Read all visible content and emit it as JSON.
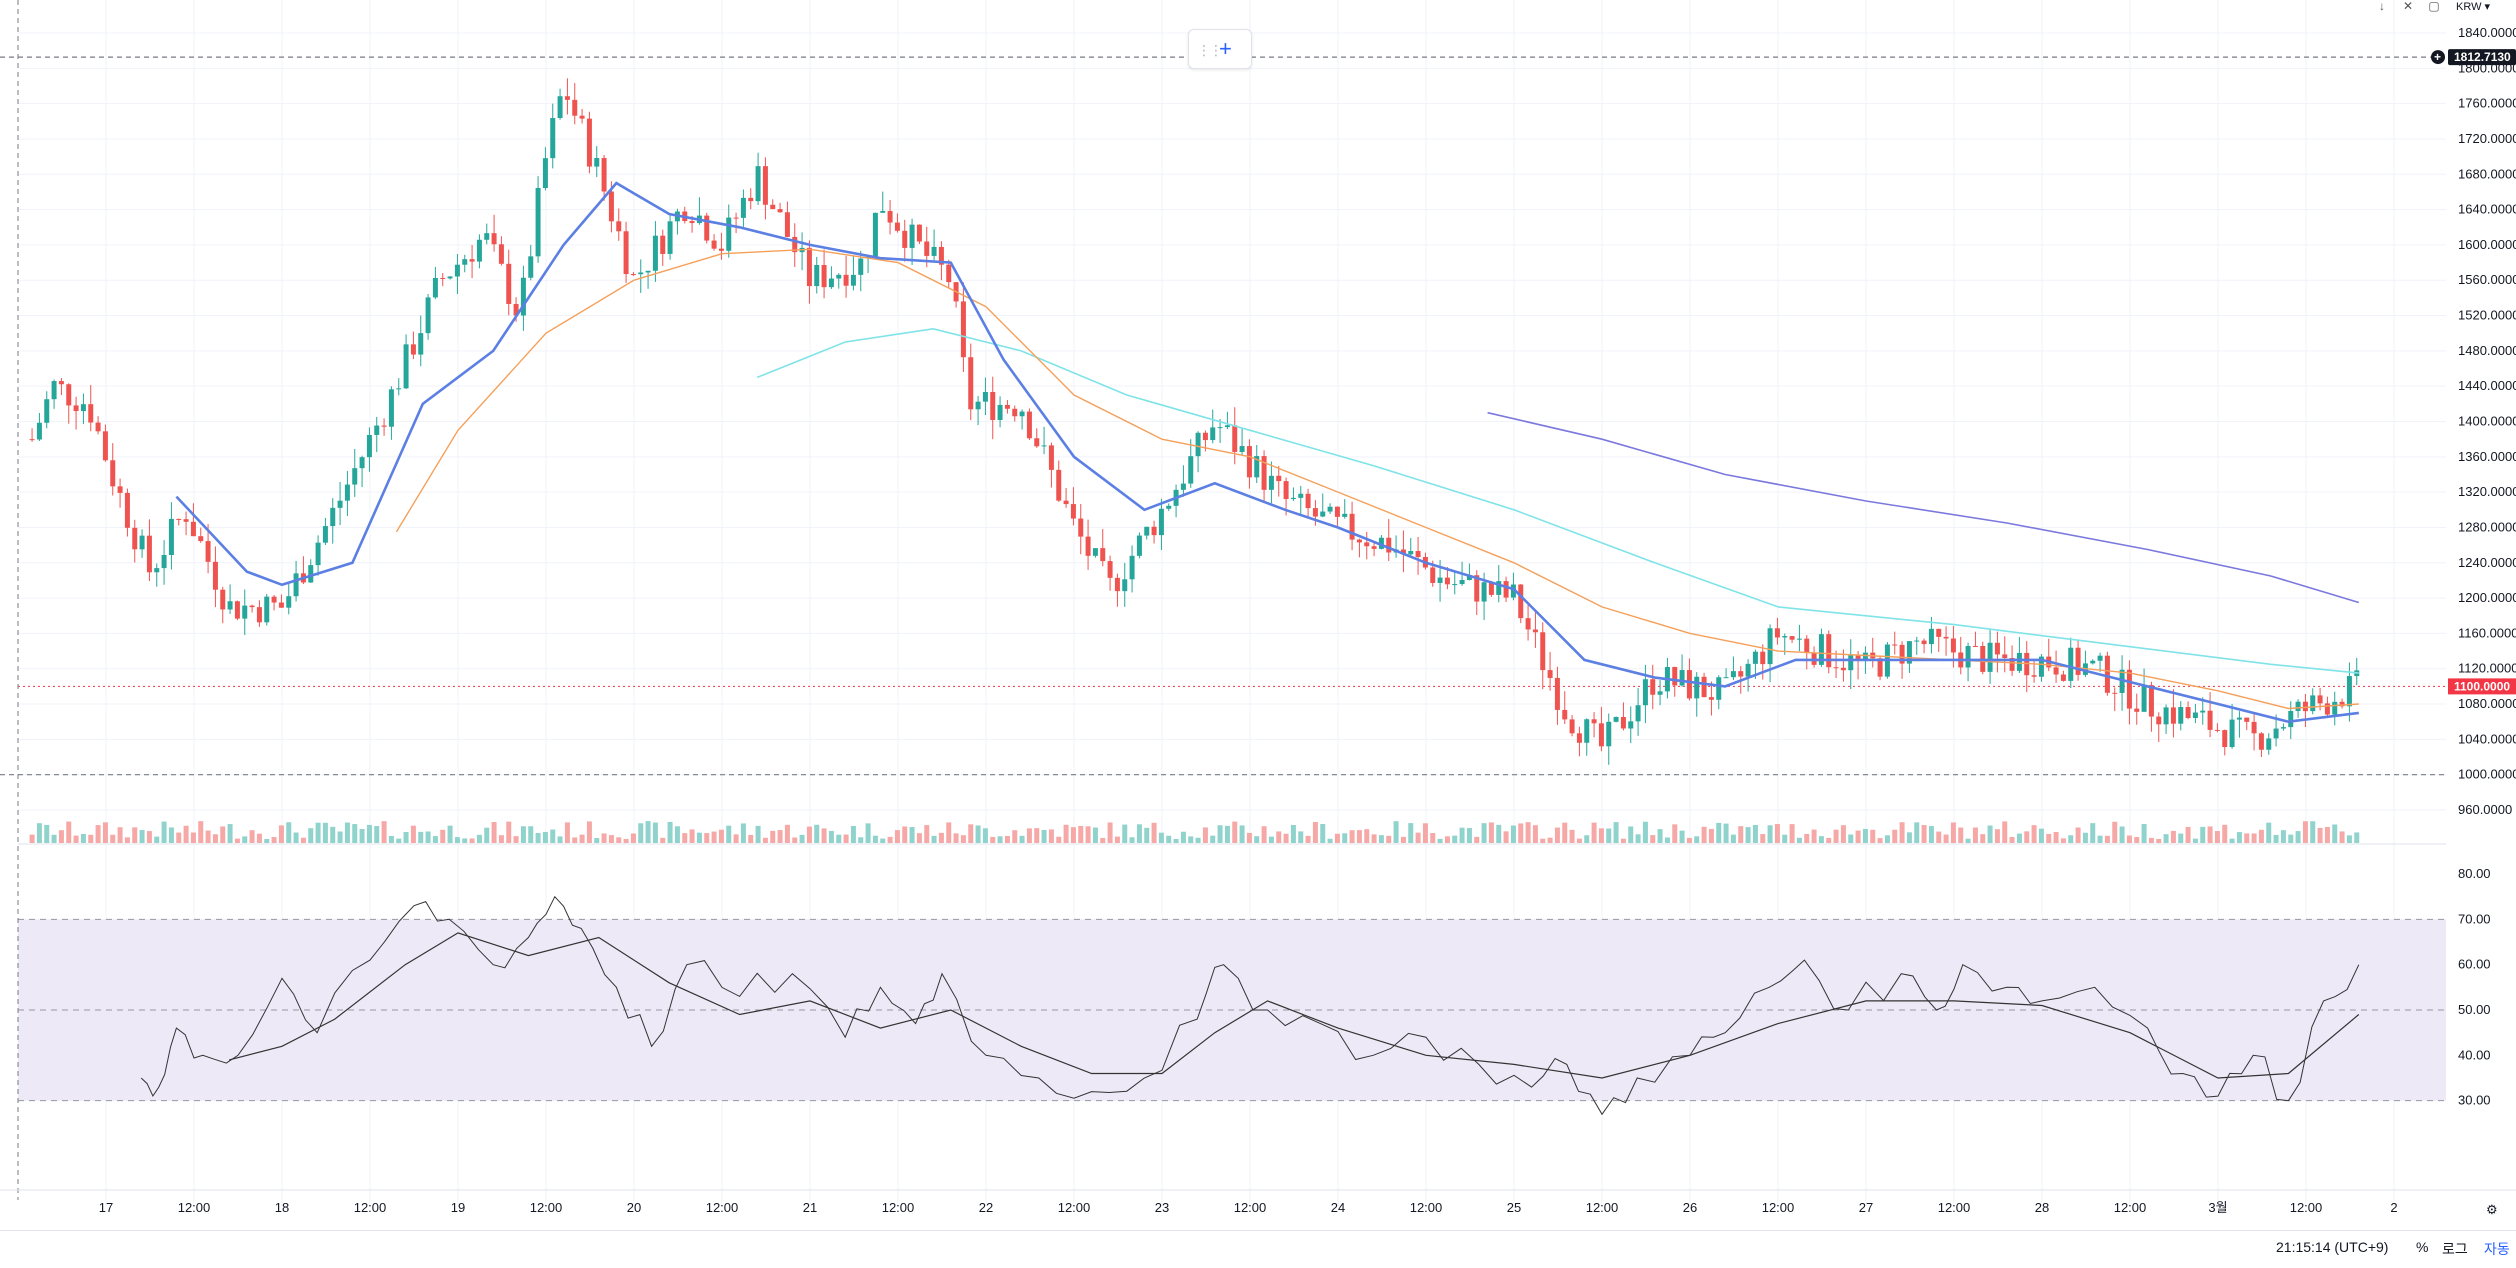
{
  "currency_label": "KRW ▾",
  "price_axis": {
    "labels": [
      "1840.0000",
      "1800.0000",
      "1760.0000",
      "1720.0000",
      "1680.0000",
      "1640.0000",
      "1600.0000",
      "1560.0000",
      "1520.0000",
      "1480.0000",
      "1440.0000",
      "1400.0000",
      "1360.0000",
      "1320.0000",
      "1280.0000",
      "1240.0000",
      "1200.0000",
      "1160.0000",
      "1120.0000",
      "1080.0000",
      "1040.0000",
      "1000.0000",
      "960.0000"
    ],
    "values": [
      1840,
      1800,
      1760,
      1720,
      1680,
      1640,
      1600,
      1560,
      1520,
      1480,
      1440,
      1400,
      1360,
      1320,
      1280,
      1240,
      1200,
      1160,
      1120,
      1080,
      1040,
      1000,
      960
    ]
  },
  "rsi_axis": {
    "labels": [
      "80.00",
      "70.00",
      "60.00",
      "50.00",
      "40.00",
      "30.00"
    ],
    "values": [
      80,
      70,
      60,
      50,
      40,
      30
    ]
  },
  "crosshair_tag": "1812.7130",
  "last_price_tag": "1100.0000",
  "colors": {
    "up": "#26a69a",
    "down": "#ef5350",
    "ma_fast": "#5b7fe3",
    "ma_mid": "#f5a05a",
    "ma_slow": "#7fe3e8",
    "ma_long": "#7b78de",
    "rsi": "#333333",
    "rsi_ma": "#333333",
    "rsi_band": "#ede9f7",
    "last_price": "#f23645"
  },
  "time_axis": [
    {
      "label": "17",
      "pos": 0
    },
    {
      "label": "12:00",
      "pos": 0.5
    },
    {
      "label": "18",
      "pos": 1
    },
    {
      "label": "12:00",
      "pos": 1.5
    },
    {
      "label": "19",
      "pos": 2
    },
    {
      "label": "12:00",
      "pos": 2.5
    },
    {
      "label": "20",
      "pos": 3
    },
    {
      "label": "12:00",
      "pos": 3.5
    },
    {
      "label": "21",
      "pos": 4
    },
    {
      "label": "12:00",
      "pos": 4.5
    },
    {
      "label": "22",
      "pos": 5
    },
    {
      "label": "12:00",
      "pos": 5.5
    },
    {
      "label": "23",
      "pos": 6
    },
    {
      "label": "12:00",
      "pos": 6.5
    },
    {
      "label": "24",
      "pos": 7
    },
    {
      "label": "12:00",
      "pos": 7.5
    },
    {
      "label": "25",
      "pos": 8
    },
    {
      "label": "12:00",
      "pos": 8.5
    },
    {
      "label": "26",
      "pos": 9
    },
    {
      "label": "12:00",
      "pos": 9.5
    },
    {
      "label": "27",
      "pos": 10
    },
    {
      "label": "12:00",
      "pos": 10.5
    },
    {
      "label": "28",
      "pos": 11
    },
    {
      "label": "12:00",
      "pos": 11.5
    },
    {
      "label": "3월",
      "pos": 12
    },
    {
      "label": "12:00",
      "pos": 12.5
    },
    {
      "label": "2",
      "pos": 13
    }
  ],
  "bottom_bar": {
    "clock": "21:15:14 (UTC+9)",
    "percent": "%",
    "log": "로그",
    "auto": "자동"
  },
  "chart_data": {
    "type": "candlestick",
    "price_range": [
      960,
      1840
    ],
    "rsi_range": [
      20,
      80
    ],
    "rsi_levels": [
      70,
      50,
      30
    ],
    "last_price": 1100,
    "crosshair_price": 1812.713,
    "horizontal_levels": [
      1812.713,
      1000
    ],
    "anchors": [
      {
        "pos": -0.42,
        "price": 1380
      },
      {
        "pos": -0.3,
        "price": 1440
      },
      {
        "pos": -0.1,
        "price": 1420
      },
      {
        "pos": 0.05,
        "price": 1330
      },
      {
        "pos": 0.25,
        "price": 1230
      },
      {
        "pos": 0.45,
        "price": 1300
      },
      {
        "pos": 0.7,
        "price": 1190
      },
      {
        "pos": 1.0,
        "price": 1190
      },
      {
        "pos": 1.3,
        "price": 1300
      },
      {
        "pos": 1.6,
        "price": 1420
      },
      {
        "pos": 1.9,
        "price": 1560
      },
      {
        "pos": 2.15,
        "price": 1610
      },
      {
        "pos": 2.35,
        "price": 1520
      },
      {
        "pos": 2.5,
        "price": 1700
      },
      {
        "pos": 2.6,
        "price": 1780
      },
      {
        "pos": 2.8,
        "price": 1680
      },
      {
        "pos": 3.0,
        "price": 1560
      },
      {
        "pos": 3.3,
        "price": 1650
      },
      {
        "pos": 3.5,
        "price": 1600
      },
      {
        "pos": 3.7,
        "price": 1680
      },
      {
        "pos": 4.0,
        "price": 1560
      },
      {
        "pos": 4.3,
        "price": 1580
      },
      {
        "pos": 4.4,
        "price": 1650
      },
      {
        "pos": 4.6,
        "price": 1600
      },
      {
        "pos": 4.8,
        "price": 1560
      },
      {
        "pos": 4.9,
        "price": 1420
      },
      {
        "pos": 5.2,
        "price": 1420
      },
      {
        "pos": 5.5,
        "price": 1280
      },
      {
        "pos": 5.7,
        "price": 1210
      },
      {
        "pos": 6.0,
        "price": 1300
      },
      {
        "pos": 6.3,
        "price": 1400
      },
      {
        "pos": 6.7,
        "price": 1310
      },
      {
        "pos": 7.0,
        "price": 1280
      },
      {
        "pos": 7.3,
        "price": 1260
      },
      {
        "pos": 7.6,
        "price": 1220
      },
      {
        "pos": 8.0,
        "price": 1200
      },
      {
        "pos": 8.3,
        "price": 1070
      },
      {
        "pos": 8.5,
        "price": 1030
      },
      {
        "pos": 8.8,
        "price": 1110
      },
      {
        "pos": 9.2,
        "price": 1090
      },
      {
        "pos": 9.5,
        "price": 1160
      },
      {
        "pos": 10.0,
        "price": 1120
      },
      {
        "pos": 10.3,
        "price": 1150
      },
      {
        "pos": 10.7,
        "price": 1130
      },
      {
        "pos": 11.0,
        "price": 1130
      },
      {
        "pos": 11.3,
        "price": 1120
      },
      {
        "pos": 11.6,
        "price": 1080
      },
      {
        "pos": 11.9,
        "price": 1060
      },
      {
        "pos": 12.2,
        "price": 1040
      },
      {
        "pos": 12.45,
        "price": 1070
      },
      {
        "pos": 12.8,
        "price": 1100
      }
    ],
    "ma_fast": [
      {
        "pos": 0.4,
        "price": 1315
      },
      {
        "pos": 0.8,
        "price": 1230
      },
      {
        "pos": 1.0,
        "price": 1215
      },
      {
        "pos": 1.4,
        "price": 1240
      },
      {
        "pos": 1.8,
        "price": 1420
      },
      {
        "pos": 2.2,
        "price": 1480
      },
      {
        "pos": 2.6,
        "price": 1600
      },
      {
        "pos": 2.9,
        "price": 1670
      },
      {
        "pos": 3.2,
        "price": 1635
      },
      {
        "pos": 3.6,
        "price": 1620
      },
      {
        "pos": 4.0,
        "price": 1600
      },
      {
        "pos": 4.4,
        "price": 1585
      },
      {
        "pos": 4.8,
        "price": 1580
      },
      {
        "pos": 5.1,
        "price": 1470
      },
      {
        "pos": 5.5,
        "price": 1360
      },
      {
        "pos": 5.9,
        "price": 1300
      },
      {
        "pos": 6.3,
        "price": 1330
      },
      {
        "pos": 6.7,
        "price": 1300
      },
      {
        "pos": 7.0,
        "price": 1280
      },
      {
        "pos": 7.5,
        "price": 1240
      },
      {
        "pos": 8.0,
        "price": 1210
      },
      {
        "pos": 8.4,
        "price": 1130
      },
      {
        "pos": 8.8,
        "price": 1110
      },
      {
        "pos": 9.2,
        "price": 1100
      },
      {
        "pos": 9.6,
        "price": 1130
      },
      {
        "pos": 10.0,
        "price": 1130
      },
      {
        "pos": 10.5,
        "price": 1130
      },
      {
        "pos": 11.0,
        "price": 1130
      },
      {
        "pos": 11.5,
        "price": 1105
      },
      {
        "pos": 12.0,
        "price": 1080
      },
      {
        "pos": 12.4,
        "price": 1060
      },
      {
        "pos": 12.8,
        "price": 1070
      }
    ],
    "ma_mid": [
      {
        "pos": 1.65,
        "price": 1275
      },
      {
        "pos": 2.0,
        "price": 1390
      },
      {
        "pos": 2.5,
        "price": 1500
      },
      {
        "pos": 3.0,
        "price": 1560
      },
      {
        "pos": 3.5,
        "price": 1590
      },
      {
        "pos": 4.0,
        "price": 1595
      },
      {
        "pos": 4.5,
        "price": 1580
      },
      {
        "pos": 5.0,
        "price": 1530
      },
      {
        "pos": 5.5,
        "price": 1430
      },
      {
        "pos": 6.0,
        "price": 1380
      },
      {
        "pos": 6.5,
        "price": 1360
      },
      {
        "pos": 7.0,
        "price": 1320
      },
      {
        "pos": 7.5,
        "price": 1280
      },
      {
        "pos": 8.0,
        "price": 1240
      },
      {
        "pos": 8.5,
        "price": 1190
      },
      {
        "pos": 9.0,
        "price": 1160
      },
      {
        "pos": 9.5,
        "price": 1140
      },
      {
        "pos": 10.0,
        "price": 1135
      },
      {
        "pos": 10.5,
        "price": 1130
      },
      {
        "pos": 11.0,
        "price": 1125
      },
      {
        "pos": 11.5,
        "price": 1115
      },
      {
        "pos": 12.0,
        "price": 1095
      },
      {
        "pos": 12.4,
        "price": 1075
      },
      {
        "pos": 12.8,
        "price": 1080
      }
    ],
    "ma_slow": [
      {
        "pos": 3.7,
        "price": 1450
      },
      {
        "pos": 4.2,
        "price": 1490
      },
      {
        "pos": 4.7,
        "price": 1505
      },
      {
        "pos": 5.2,
        "price": 1480
      },
      {
        "pos": 5.8,
        "price": 1430
      },
      {
        "pos": 6.5,
        "price": 1390
      },
      {
        "pos": 7.2,
        "price": 1350
      },
      {
        "pos": 8.0,
        "price": 1300
      },
      {
        "pos": 8.8,
        "price": 1240
      },
      {
        "pos": 9.5,
        "price": 1190
      },
      {
        "pos": 10.5,
        "price": 1170
      },
      {
        "pos": 11.5,
        "price": 1145
      },
      {
        "pos": 12.3,
        "price": 1125
      },
      {
        "pos": 12.8,
        "price": 1115
      }
    ],
    "ma_long": [
      {
        "pos": 7.85,
        "price": 1410
      },
      {
        "pos": 8.5,
        "price": 1380
      },
      {
        "pos": 9.2,
        "price": 1340
      },
      {
        "pos": 10.0,
        "price": 1310
      },
      {
        "pos": 10.8,
        "price": 1285
      },
      {
        "pos": 11.6,
        "price": 1255
      },
      {
        "pos": 12.3,
        "price": 1225
      },
      {
        "pos": 12.8,
        "price": 1195
      }
    ],
    "rsi_anchors": [
      {
        "pos": 0.2,
        "value": 35
      },
      {
        "pos": 0.3,
        "value": 33
      },
      {
        "pos": 0.4,
        "value": 46
      },
      {
        "pos": 0.55,
        "value": 40
      },
      {
        "pos": 0.75,
        "value": 40
      },
      {
        "pos": 1.0,
        "value": 57
      },
      {
        "pos": 1.2,
        "value": 45
      },
      {
        "pos": 1.5,
        "value": 61
      },
      {
        "pos": 1.75,
        "value": 73
      },
      {
        "pos": 1.95,
        "value": 70
      },
      {
        "pos": 2.2,
        "value": 60
      },
      {
        "pos": 2.4,
        "value": 66
      },
      {
        "pos": 2.55,
        "value": 75
      },
      {
        "pos": 2.7,
        "value": 68
      },
      {
        "pos": 2.9,
        "value": 55
      },
      {
        "pos": 3.1,
        "value": 42
      },
      {
        "pos": 3.3,
        "value": 60
      },
      {
        "pos": 3.6,
        "value": 53
      },
      {
        "pos": 3.9,
        "value": 58
      },
      {
        "pos": 4.2,
        "value": 44
      },
      {
        "pos": 4.4,
        "value": 55
      },
      {
        "pos": 4.6,
        "value": 47
      },
      {
        "pos": 4.75,
        "value": 58
      },
      {
        "pos": 5.0,
        "value": 40
      },
      {
        "pos": 5.3,
        "value": 35
      },
      {
        "pos": 5.6,
        "value": 32
      },
      {
        "pos": 5.9,
        "value": 35
      },
      {
        "pos": 6.2,
        "value": 48
      },
      {
        "pos": 6.35,
        "value": 60
      },
      {
        "pos": 6.6,
        "value": 50
      },
      {
        "pos": 6.9,
        "value": 47
      },
      {
        "pos": 7.2,
        "value": 40
      },
      {
        "pos": 7.5,
        "value": 44
      },
      {
        "pos": 7.8,
        "value": 38
      },
      {
        "pos": 8.1,
        "value": 33
      },
      {
        "pos": 8.3,
        "value": 38
      },
      {
        "pos": 8.5,
        "value": 27
      },
      {
        "pos": 8.7,
        "value": 35
      },
      {
        "pos": 9.0,
        "value": 40
      },
      {
        "pos": 9.2,
        "value": 45
      },
      {
        "pos": 9.45,
        "value": 55
      },
      {
        "pos": 9.65,
        "value": 61
      },
      {
        "pos": 9.9,
        "value": 50
      },
      {
        "pos": 10.2,
        "value": 58
      },
      {
        "pos": 10.4,
        "value": 50
      },
      {
        "pos": 10.55,
        "value": 60
      },
      {
        "pos": 10.8,
        "value": 55
      },
      {
        "pos": 11.0,
        "value": 52
      },
      {
        "pos": 11.3,
        "value": 55
      },
      {
        "pos": 11.6,
        "value": 46
      },
      {
        "pos": 11.8,
        "value": 36
      },
      {
        "pos": 12.0,
        "value": 31
      },
      {
        "pos": 12.2,
        "value": 40
      },
      {
        "pos": 12.4,
        "value": 30
      },
      {
        "pos": 12.6,
        "value": 52
      },
      {
        "pos": 12.8,
        "value": 60
      }
    ],
    "rsi_ma": [
      {
        "pos": 0.7,
        "value": 39
      },
      {
        "pos": 1.0,
        "value": 42
      },
      {
        "pos": 1.3,
        "value": 48
      },
      {
        "pos": 1.7,
        "value": 60
      },
      {
        "pos": 2.0,
        "value": 67
      },
      {
        "pos": 2.4,
        "value": 62
      },
      {
        "pos": 2.8,
        "value": 66
      },
      {
        "pos": 3.2,
        "value": 56
      },
      {
        "pos": 3.6,
        "value": 49
      },
      {
        "pos": 4.0,
        "value": 52
      },
      {
        "pos": 4.4,
        "value": 46
      },
      {
        "pos": 4.8,
        "value": 50
      },
      {
        "pos": 5.2,
        "value": 42
      },
      {
        "pos": 5.6,
        "value": 36
      },
      {
        "pos": 6.0,
        "value": 36
      },
      {
        "pos": 6.3,
        "value": 45
      },
      {
        "pos": 6.6,
        "value": 52
      },
      {
        "pos": 7.0,
        "value": 46
      },
      {
        "pos": 7.5,
        "value": 40
      },
      {
        "pos": 8.0,
        "value": 38
      },
      {
        "pos": 8.5,
        "value": 35
      },
      {
        "pos": 9.0,
        "value": 40
      },
      {
        "pos": 9.5,
        "value": 47
      },
      {
        "pos": 10.0,
        "value": 52
      },
      {
        "pos": 10.5,
        "value": 52
      },
      {
        "pos": 11.0,
        "value": 51
      },
      {
        "pos": 11.5,
        "value": 45
      },
      {
        "pos": 12.0,
        "value": 35
      },
      {
        "pos": 12.4,
        "value": 36
      },
      {
        "pos": 12.8,
        "value": 49
      }
    ]
  }
}
